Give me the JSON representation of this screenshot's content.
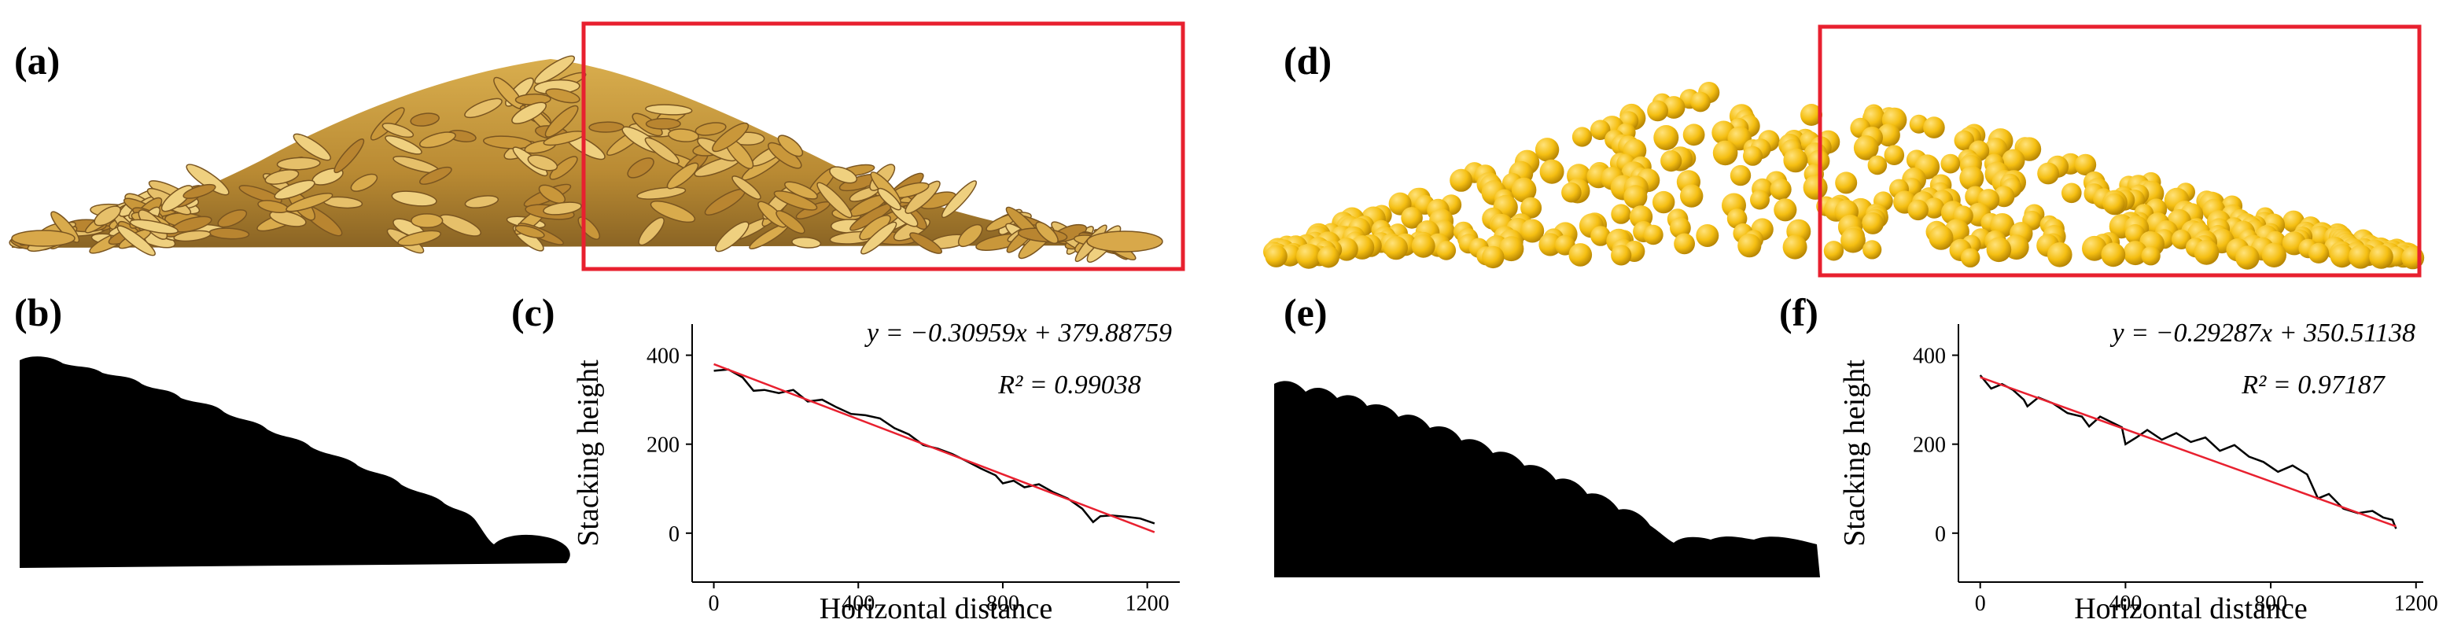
{
  "panels": {
    "a": "(a)",
    "b": "(b)",
    "c": "(c)",
    "d": "(d)",
    "e": "(e)",
    "f": "(f)"
  },
  "colors": {
    "highlight_box": "#e8202f",
    "grain_gold": "#c99a3a",
    "simulated_particle": "#f5bf12",
    "silhouette": "#000000",
    "fit_line": "#e8202f",
    "profile_line": "#000000"
  },
  "chart_data": [
    {
      "type": "line",
      "panel": "(c)",
      "title": "",
      "xlabel": "Horizontal distance",
      "ylabel": "Stacking height",
      "xlim": [
        -60,
        1290
      ],
      "ylim": [
        -110,
        470
      ],
      "xticks": [
        0,
        400,
        800,
        1200
      ],
      "yticks": [
        0,
        200,
        400
      ],
      "grid": false,
      "equation": "y = −0.30959x + 379.88759",
      "r2": "R² = 0.99038",
      "series": [
        {
          "role": "profile",
          "x": [
            0,
            40,
            80,
            110,
            140,
            180,
            220,
            260,
            300,
            340,
            380,
            420,
            460,
            500,
            540,
            580,
            620,
            660,
            700,
            740,
            780,
            800,
            830,
            860,
            900,
            940,
            980,
            1020,
            1050,
            1070,
            1100,
            1140,
            1180,
            1220
          ],
          "y": [
            365,
            368,
            350,
            320,
            322,
            315,
            322,
            296,
            300,
            283,
            268,
            265,
            258,
            236,
            222,
            198,
            190,
            178,
            162,
            145,
            130,
            112,
            118,
            103,
            110,
            92,
            78,
            55,
            25,
            38,
            40,
            37,
            33,
            22
          ]
        },
        {
          "role": "fit",
          "x": [
            0,
            1220
          ],
          "y": [
            379.89,
            2.19
          ]
        }
      ]
    },
    {
      "type": "line",
      "panel": "(f)",
      "title": "",
      "xlabel": "Horizontal distance",
      "ylabel": "Stacking height",
      "xlim": [
        -60,
        1220
      ],
      "ylim": [
        -110,
        470
      ],
      "xticks": [
        0,
        400,
        800,
        1200
      ],
      "yticks": [
        0,
        200,
        400
      ],
      "grid": false,
      "equation": "y = −0.29287x + 350.51138",
      "r2": "R² = 0.97187",
      "series": [
        {
          "role": "profile",
          "x": [
            0,
            30,
            60,
            90,
            120,
            130,
            160,
            200,
            240,
            280,
            300,
            330,
            360,
            390,
            400,
            430,
            460,
            500,
            540,
            580,
            620,
            660,
            700,
            740,
            780,
            820,
            860,
            900,
            930,
            960,
            1000,
            1040,
            1080,
            1110,
            1135,
            1145
          ],
          "y": [
            355,
            325,
            335,
            322,
            300,
            285,
            305,
            292,
            270,
            262,
            240,
            262,
            250,
            238,
            200,
            215,
            232,
            210,
            225,
            205,
            215,
            185,
            198,
            172,
            160,
            138,
            152,
            132,
            78,
            88,
            55,
            45,
            50,
            35,
            30,
            10
          ]
        },
        {
          "role": "fit",
          "x": [
            0,
            1145
          ],
          "y": [
            350.51,
            15.17
          ]
        }
      ]
    }
  ]
}
